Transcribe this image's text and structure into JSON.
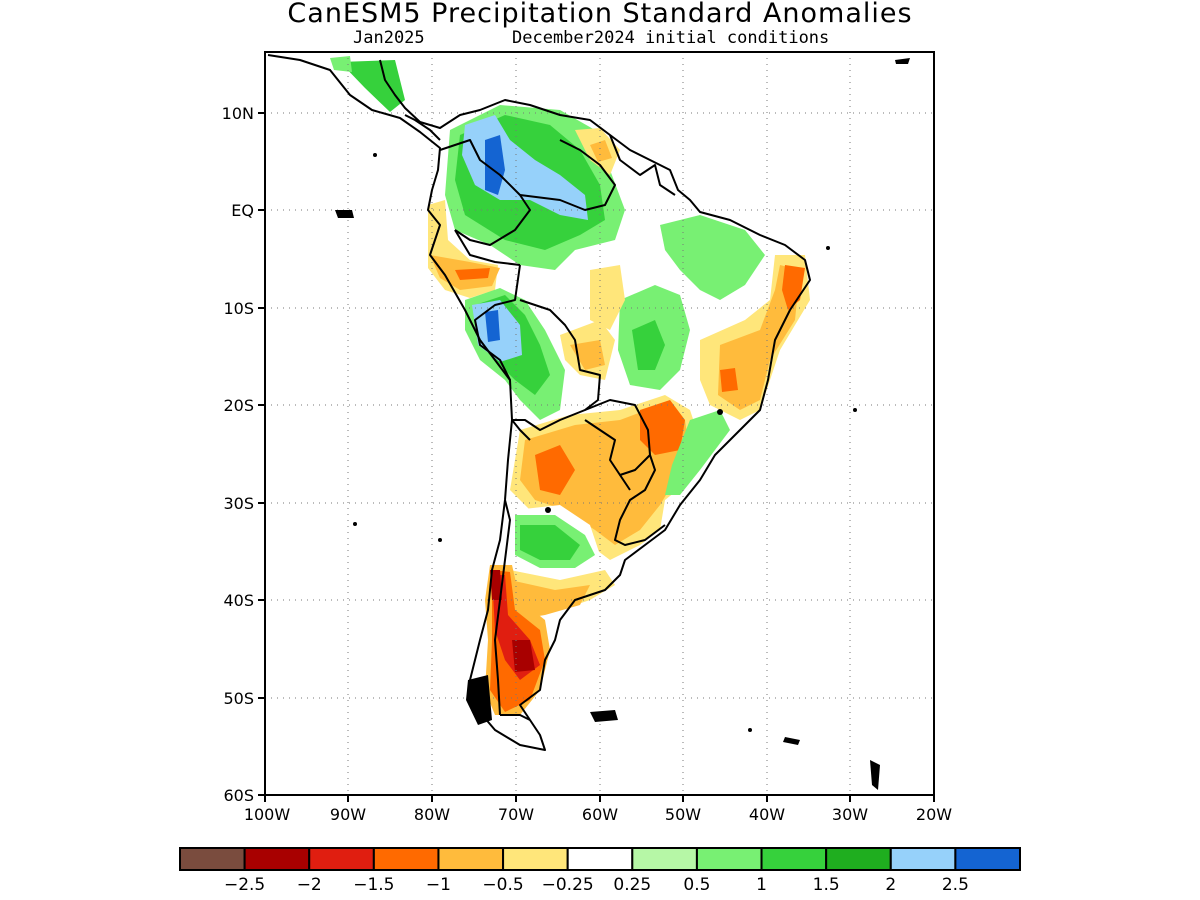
{
  "title": "CanESM5 Precipitation Standard Anomalies",
  "subtitle_left": "Jan2025",
  "subtitle_right": "December2024 initial conditions",
  "axes": {
    "lon_labels": [
      "100W",
      "90W",
      "80W",
      "70W",
      "60W",
      "50W",
      "40W",
      "30W",
      "20W"
    ],
    "lat_labels": [
      "10N",
      "EQ",
      "10S",
      "20S",
      "30S",
      "40S",
      "50S",
      "60S"
    ],
    "lon_range": [
      -100,
      -20
    ],
    "lat_range": [
      -60,
      15
    ],
    "grid": "dotted"
  },
  "colorbar": {
    "colors": [
      "#7a4c3e",
      "#a80000",
      "#e01e10",
      "#ff6a00",
      "#ffbb3c",
      "#ffe67a",
      "#ffffff",
      "#b6f7a6",
      "#78f073",
      "#36d13c",
      "#1fae1f",
      "#96d1fa",
      "#1464d2"
    ],
    "labels": [
      "-2.5",
      "-2",
      "-1.5",
      "-1",
      "-0.5",
      "-0.25",
      "0.25",
      "0.5",
      "1",
      "1.5",
      "2",
      "2.5"
    ]
  }
}
